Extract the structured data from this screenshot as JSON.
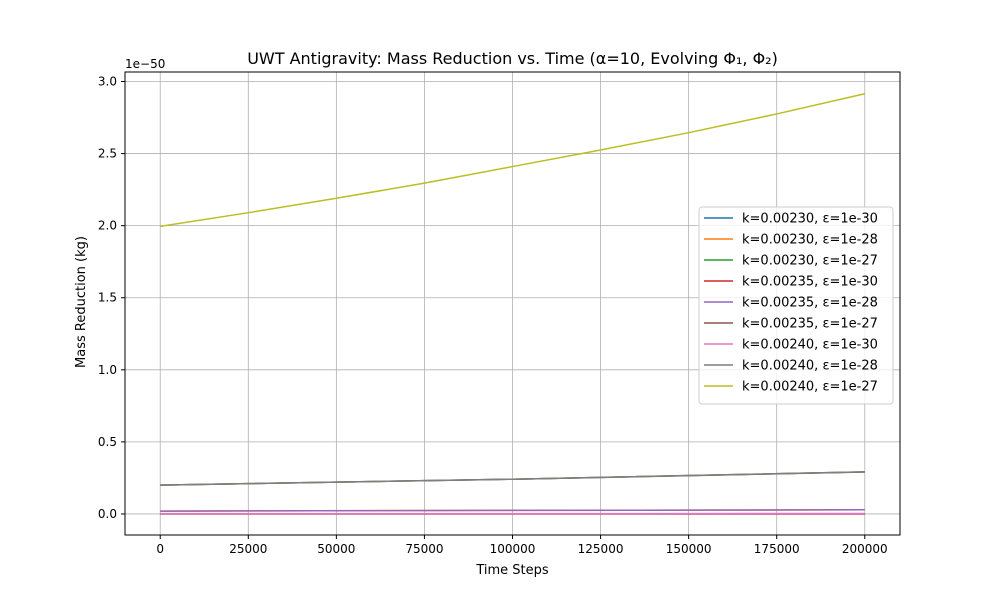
{
  "chart_data": {
    "type": "line",
    "title": "UWT Antigravity: Mass Reduction vs. Time (α=10, Evolving Φ₁, Φ₂)",
    "xlabel": "Time Steps",
    "ylabel": "Mass Reduction (kg)",
    "offset_text": "1e−50",
    "xlim": [
      -10000,
      210000
    ],
    "ylim": [
      -0.146,
      3.066
    ],
    "xticks": [
      0,
      25000,
      50000,
      75000,
      100000,
      125000,
      150000,
      175000,
      200000
    ],
    "yticks": [
      0.0,
      0.5,
      1.0,
      1.5,
      2.0,
      2.5,
      3.0
    ],
    "ytick_labels": [
      "0.0",
      "0.5",
      "1.0",
      "1.5",
      "2.0",
      "2.5",
      "3.0"
    ],
    "grid": true,
    "legend_position": "center-right",
    "series": [
      {
        "name": "k=0.00230, ε=1e-30",
        "color": "#1f77b4",
        "x": [
          0,
          200000
        ],
        "y": [
          0.0002,
          0.0003
        ]
      },
      {
        "name": "k=0.00230, ε=1e-28",
        "color": "#ff7f0e",
        "x": [
          0,
          200000
        ],
        "y": [
          0.02,
          0.029
        ]
      },
      {
        "name": "k=0.00230, ε=1e-27",
        "color": "#2ca02c",
        "x": [
          0,
          100000,
          200000
        ],
        "y": [
          0.2,
          0.241,
          0.291
        ]
      },
      {
        "name": "k=0.00235, ε=1e-30",
        "color": "#d62728",
        "x": [
          0,
          200000
        ],
        "y": [
          0.0002,
          0.0003
        ]
      },
      {
        "name": "k=0.00235, ε=1e-28",
        "color": "#9467bd",
        "x": [
          0,
          200000
        ],
        "y": [
          0.02,
          0.029
        ]
      },
      {
        "name": "k=0.00235, ε=1e-27",
        "color": "#8c564b",
        "x": [
          0,
          100000,
          200000
        ],
        "y": [
          0.2,
          0.241,
          0.292
        ]
      },
      {
        "name": "k=0.00240, ε=1e-30",
        "color": "#e377c2",
        "x": [
          0,
          200000
        ],
        "y": [
          0.002,
          0.003
        ]
      },
      {
        "name": "k=0.00240, ε=1e-28",
        "color": "#7f7f7f",
        "x": [
          0,
          100000,
          200000
        ],
        "y": [
          0.2,
          0.241,
          0.292
        ]
      },
      {
        "name": "k=0.00240, ε=1e-27",
        "color": "#bcbd22",
        "x": [
          0,
          25000,
          50000,
          75000,
          100000,
          125000,
          150000,
          175000,
          200000
        ],
        "y": [
          1.995,
          2.09,
          2.19,
          2.295,
          2.41,
          2.525,
          2.645,
          2.775,
          2.915
        ]
      }
    ]
  }
}
